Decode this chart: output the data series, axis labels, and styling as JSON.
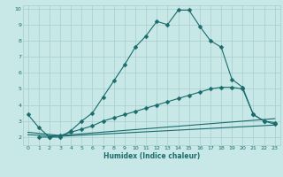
{
  "xlabel": "Humidex (Indice chaleur)",
  "bg_color": "#c8e8e8",
  "grid_color": "#a8cccc",
  "line_color": "#1a6b6b",
  "xlim": [
    -0.5,
    23.5
  ],
  "ylim": [
    1.5,
    10.2
  ],
  "xticks": [
    0,
    1,
    2,
    3,
    4,
    5,
    6,
    7,
    8,
    9,
    10,
    11,
    12,
    13,
    14,
    15,
    16,
    17,
    18,
    19,
    20,
    21,
    22,
    23
  ],
  "yticks": [
    2,
    3,
    4,
    5,
    6,
    7,
    8,
    9,
    10
  ],
  "line1_x": [
    1,
    2,
    3,
    4,
    5,
    6,
    7,
    8,
    9,
    10,
    11,
    12,
    13,
    14,
    15,
    16,
    17,
    18,
    19,
    20,
    21,
    22,
    23
  ],
  "line1_y": [
    2.0,
    2.0,
    2.0,
    2.4,
    3.0,
    3.5,
    4.5,
    5.5,
    6.5,
    7.6,
    8.3,
    9.2,
    9.0,
    9.9,
    9.9,
    8.9,
    8.0,
    7.6,
    5.6,
    5.1,
    3.4,
    3.0,
    2.8
  ],
  "line2_x": [
    0,
    1,
    2,
    3,
    4,
    5,
    6,
    7,
    8,
    9,
    10,
    11,
    12,
    13,
    14,
    15,
    16,
    17,
    18,
    19,
    20,
    21,
    22,
    23
  ],
  "line2_y": [
    3.4,
    2.6,
    2.0,
    2.1,
    2.3,
    2.5,
    2.7,
    3.0,
    3.2,
    3.4,
    3.6,
    3.8,
    4.0,
    4.2,
    4.4,
    4.6,
    4.8,
    5.0,
    5.1,
    5.1,
    5.0,
    3.4,
    3.0,
    2.9
  ],
  "line3_x": [
    0,
    3,
    23
  ],
  "line3_y": [
    2.15,
    2.05,
    2.75
  ],
  "line4_x": [
    0,
    3,
    23
  ],
  "line4_y": [
    2.3,
    2.1,
    3.15
  ]
}
